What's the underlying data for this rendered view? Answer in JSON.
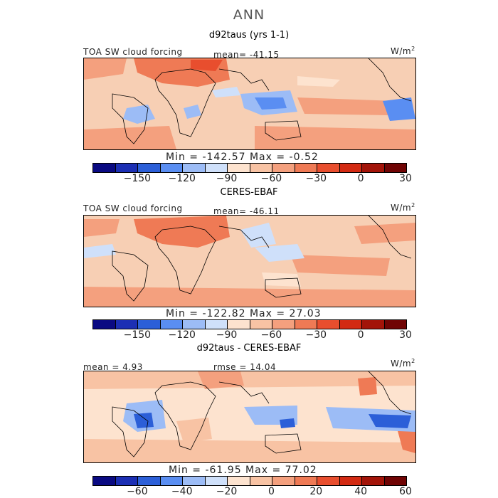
{
  "figure": {
    "season": "ANN"
  },
  "panels": [
    {
      "title": "d92taus (yrs 1-1)",
      "left_label": "TOA SW cloud forcing",
      "stat_label": "mean=  -41.15",
      "units": "W/m",
      "units_exp": "2",
      "minmax": "Min = -142.57 Max =  -0.52",
      "cbar": {
        "colors": [
          "#0a0a82",
          "#1c2fb4",
          "#2c5fd8",
          "#5a8ef2",
          "#9cbcf6",
          "#cfe0fa",
          "#fde3cf",
          "#f8c3a4",
          "#f4a07e",
          "#ef7a55",
          "#e84e2e",
          "#d32a12",
          "#a31409",
          "#700404"
        ],
        "tick_labels": [
          "-150",
          "-120",
          "-90",
          "-60",
          "-30",
          "0",
          "30"
        ]
      }
    },
    {
      "title": "CERES-EBAF",
      "left_label": "TOA SW cloud forcing",
      "stat_label": "mean=  -46.11",
      "units": "W/m",
      "units_exp": "2",
      "minmax": "Min = -122.82 Max =  27.03",
      "cbar": {
        "colors": [
          "#0a0a82",
          "#1c2fb4",
          "#2c5fd8",
          "#5a8ef2",
          "#9cbcf6",
          "#cfe0fa",
          "#fde3cf",
          "#f8c3a4",
          "#f4a07e",
          "#ef7a55",
          "#e84e2e",
          "#d32a12",
          "#a31409",
          "#700404"
        ],
        "tick_labels": [
          "-150",
          "-120",
          "-90",
          "-60",
          "-30",
          "0",
          "30"
        ]
      }
    },
    {
      "title": "d92taus - CERES-EBAF",
      "left_label": "mean =   4.93",
      "stat_label": "rmse =  14.04",
      "units": "W/m",
      "units_exp": "2",
      "minmax": "Min = -61.95 Max =  77.02",
      "cbar": {
        "colors": [
          "#0a0a82",
          "#1c2fb4",
          "#2c5fd8",
          "#5a8ef2",
          "#9cbcf6",
          "#cfe0fa",
          "#fde3cf",
          "#f8c3a4",
          "#f4a07e",
          "#ef7a55",
          "#e84e2e",
          "#d32a12",
          "#a31409",
          "#700404"
        ],
        "tick_labels": [
          "-60",
          "-40",
          "-20",
          "0",
          "20",
          "40",
          "60"
        ]
      }
    }
  ],
  "chart_data": [
    {
      "type": "heatmap",
      "title": "d92taus (yrs 1-1)",
      "variable": "TOA SW cloud forcing",
      "units": "W/m2",
      "mean": -41.15,
      "min": -142.57,
      "max": -0.52,
      "colorbar_ticks": [
        -150,
        -120,
        -90,
        -60,
        -30,
        0,
        30
      ]
    },
    {
      "type": "heatmap",
      "title": "CERES-EBAF",
      "variable": "TOA SW cloud forcing",
      "units": "W/m2",
      "mean": -46.11,
      "min": -122.82,
      "max": 27.03,
      "colorbar_ticks": [
        -150,
        -120,
        -90,
        -60,
        -30,
        0,
        30
      ]
    },
    {
      "type": "heatmap",
      "title": "d92taus - CERES-EBAF",
      "units": "W/m2",
      "mean": 4.93,
      "rmse": 14.04,
      "min": -61.95,
      "max": 77.02,
      "colorbar_ticks": [
        -60,
        -40,
        -20,
        0,
        20,
        40,
        60
      ]
    }
  ]
}
